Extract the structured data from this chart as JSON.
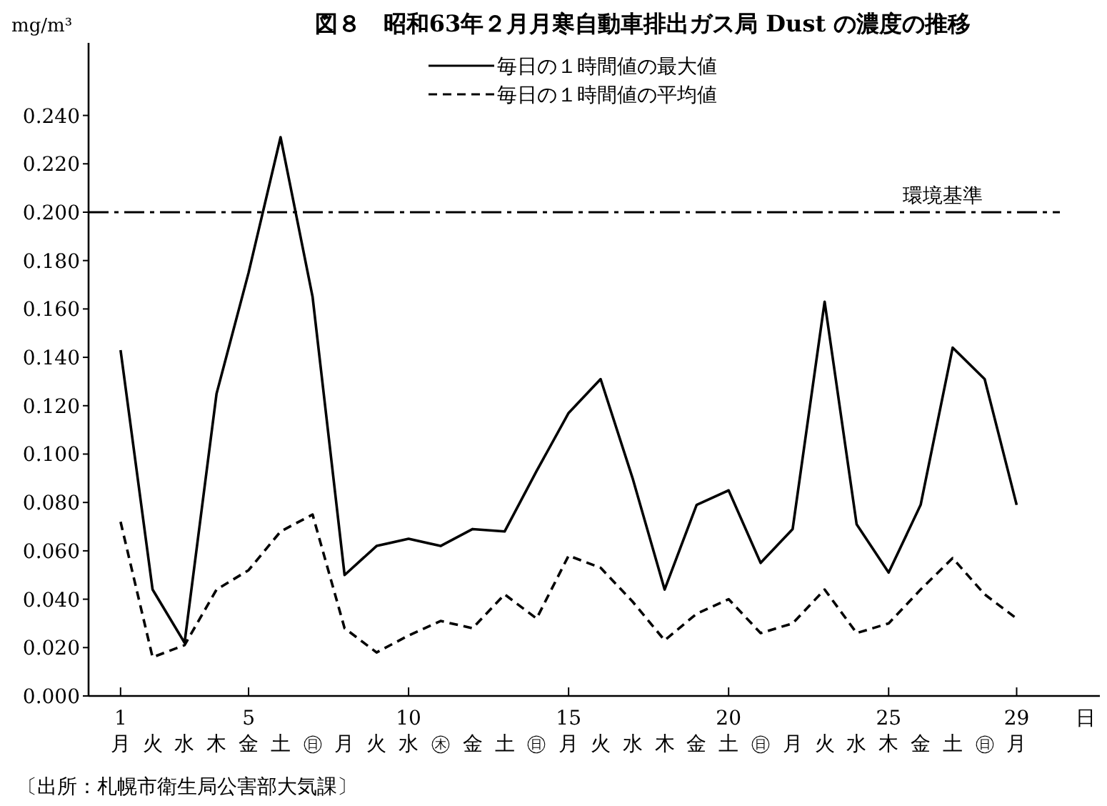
{
  "chart_data": {
    "type": "line",
    "title": "図８　昭和63年２月月寒自動車排出ガス局 Dust の濃度の推移",
    "ylabel": "mg/m³",
    "xlabel": "日",
    "x": [
      1,
      2,
      3,
      4,
      5,
      6,
      7,
      8,
      9,
      10,
      11,
      12,
      13,
      14,
      15,
      16,
      17,
      18,
      19,
      20,
      21,
      22,
      23,
      24,
      25,
      26,
      27,
      28,
      29
    ],
    "series": [
      {
        "name": "毎日の１時間値の最大値",
        "color": "#000000",
        "line_style": "solid",
        "values": [
          0.143,
          0.044,
          0.022,
          0.125,
          0.175,
          0.231,
          0.165,
          0.05,
          0.062,
          0.065,
          0.062,
          0.069,
          0.068,
          0.093,
          0.117,
          0.131,
          0.09,
          0.044,
          0.079,
          0.085,
          0.055,
          0.069,
          0.163,
          0.071,
          0.051,
          0.079,
          0.144,
          0.131,
          0.079
        ]
      },
      {
        "name": "毎日の１時間値の平均値",
        "color": "#000000",
        "line_style": "dashed",
        "values": [
          0.072,
          0.016,
          0.021,
          0.044,
          0.052,
          0.068,
          0.075,
          0.028,
          0.018,
          0.025,
          0.031,
          0.028,
          0.042,
          0.032,
          0.058,
          0.053,
          0.039,
          0.023,
          0.034,
          0.04,
          0.026,
          0.03,
          0.044,
          0.026,
          0.03,
          0.044,
          0.057,
          0.042,
          0.032
        ]
      }
    ],
    "xlim": [
      0,
      31.6
    ],
    "ylim": [
      0,
      0.27
    ],
    "xticks": [
      {
        "value": 1,
        "label": "1\n月"
      },
      {
        "value": 2,
        "label": "\n火"
      },
      {
        "value": 3,
        "label": "\n水"
      },
      {
        "value": 4,
        "label": "\n木"
      },
      {
        "value": 5,
        "label": "5\n金"
      },
      {
        "value": 6,
        "label": "\n土"
      },
      {
        "value": 7,
        "label": "\n㊐"
      },
      {
        "value": 8,
        "label": "\n月"
      },
      {
        "value": 9,
        "label": "\n火"
      },
      {
        "value": 10,
        "label": "10\n水"
      },
      {
        "value": 11,
        "label": "\n㊍"
      },
      {
        "value": 12,
        "label": "\n金"
      },
      {
        "value": 13,
        "label": "\n土"
      },
      {
        "value": 14,
        "label": "\n㊐"
      },
      {
        "value": 15,
        "label": "15\n月"
      },
      {
        "value": 16,
        "label": "\n火"
      },
      {
        "value": 17,
        "label": "\n水"
      },
      {
        "value": 18,
        "label": "\n木"
      },
      {
        "value": 19,
        "label": "\n金"
      },
      {
        "value": 20,
        "label": "20\n土"
      },
      {
        "value": 21,
        "label": "\n㊐"
      },
      {
        "value": 22,
        "label": "\n月"
      },
      {
        "value": 23,
        "label": "\n火"
      },
      {
        "value": 24,
        "label": "\n水"
      },
      {
        "value": 25,
        "label": "25\n木"
      },
      {
        "value": 26,
        "label": "\n金"
      },
      {
        "value": 27,
        "label": "\n土"
      },
      {
        "value": 28,
        "label": "\n㊐"
      },
      {
        "value": 29,
        "label": "29\n月"
      }
    ],
    "yticks": [
      {
        "value": 0,
        "label": "0.000"
      },
      {
        "value": 0.02,
        "label": "0.020"
      },
      {
        "value": 0.04,
        "label": "0.040"
      },
      {
        "value": 0.06,
        "label": "0.060"
      },
      {
        "value": 0.08,
        "label": "0.080"
      },
      {
        "value": 0.1,
        "label": "0.100"
      },
      {
        "value": 0.12,
        "label": "0.120"
      },
      {
        "value": 0.14,
        "label": "0.140"
      },
      {
        "value": 0.16,
        "label": "0.160"
      },
      {
        "value": 0.18,
        "label": "0.180"
      },
      {
        "value": 0.2,
        "label": "0.200"
      },
      {
        "value": 0.22,
        "label": "0.220"
      },
      {
        "value": 0.24,
        "label": "0.240"
      }
    ],
    "ref_lines": [
      {
        "axis": "y",
        "value": 0.2,
        "label": "環境基準",
        "color": "#000000",
        "line_style": "dashdot"
      }
    ],
    "legend": "top",
    "grid": false,
    "marker": "none",
    "annotations": [
      "〔出所：札幌市衛生局公害部大気課〕"
    ]
  }
}
